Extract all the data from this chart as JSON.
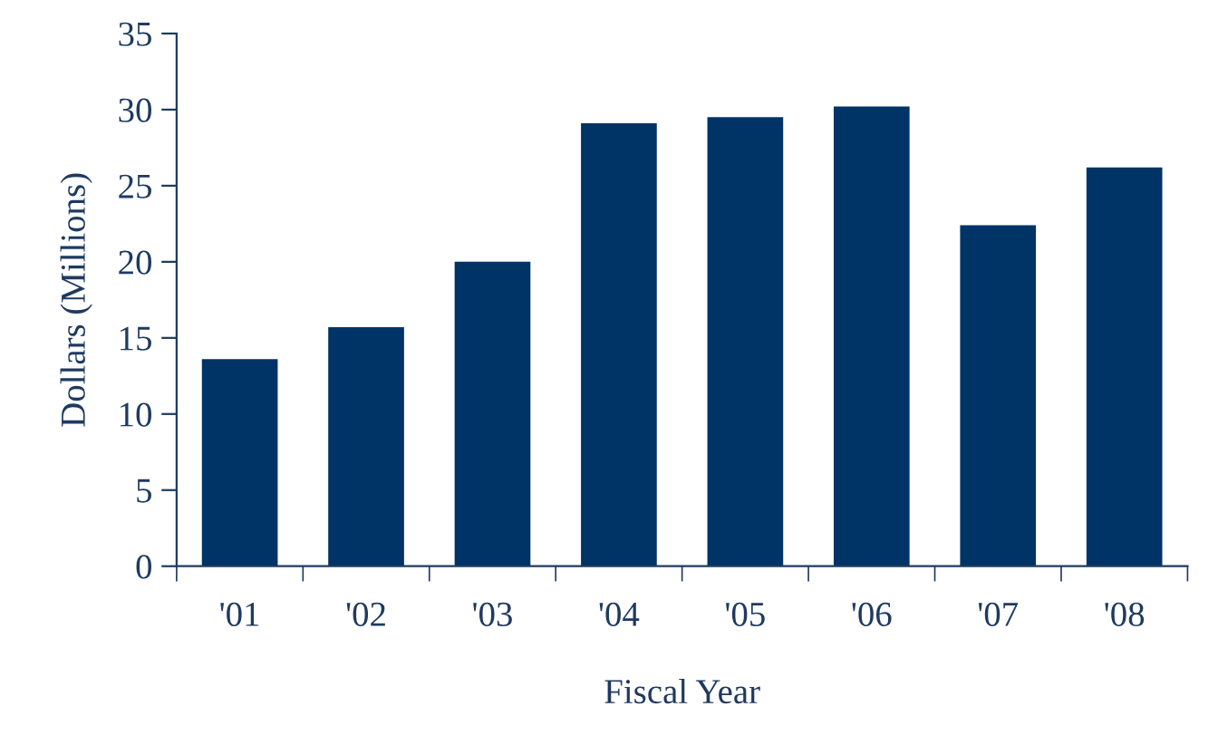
{
  "chart_data": {
    "type": "bar",
    "xlabel": "Fiscal Year",
    "ylabel": "Dollars (Millions)",
    "categories": [
      "'01",
      "'02",
      "'03",
      "'04",
      "'05",
      "'06",
      "'07",
      "'08"
    ],
    "values": [
      13.6,
      15.7,
      20.0,
      29.1,
      29.5,
      30.2,
      22.4,
      26.2
    ],
    "color": "#003366",
    "ylim": [
      0,
      35
    ],
    "yticks": [
      0,
      5,
      10,
      15,
      20,
      25,
      30,
      35
    ],
    "grid": false
  }
}
